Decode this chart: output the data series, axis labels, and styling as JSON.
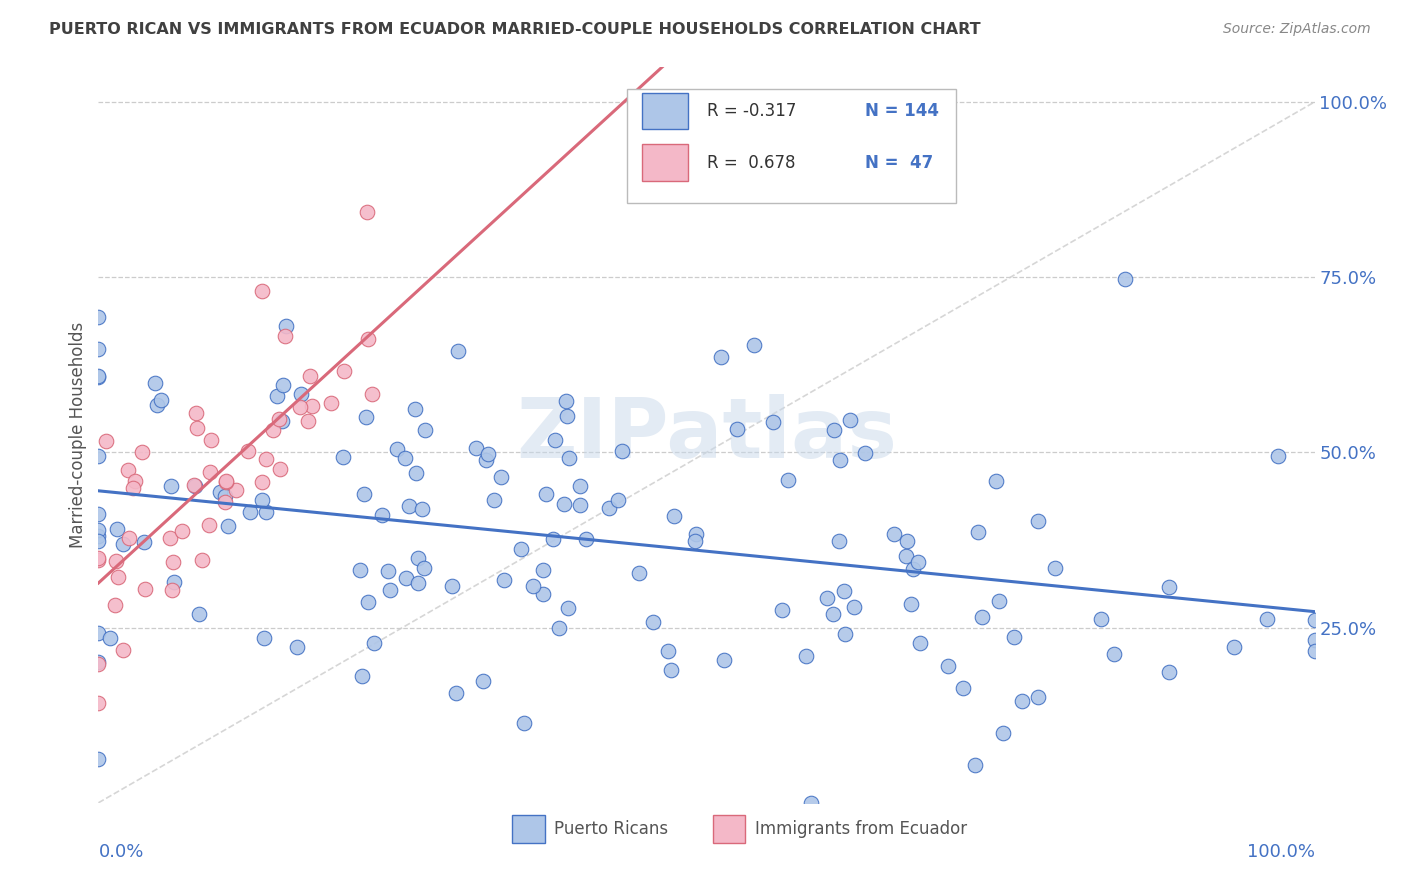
{
  "title": "PUERTO RICAN VS IMMIGRANTS FROM ECUADOR MARRIED-COUPLE HOUSEHOLDS CORRELATION CHART",
  "source": "Source: ZipAtlas.com",
  "ylabel": "Married-couple Households",
  "legend_blue_r": "-0.317",
  "legend_blue_n": "144",
  "legend_pink_r": "0.678",
  "legend_pink_n": "47",
  "blue_fill": "#aec6e8",
  "blue_edge": "#4472c4",
  "pink_fill": "#f4b8c8",
  "pink_edge": "#d9697a",
  "blue_line": "#4472c4",
  "pink_line": "#d9697a",
  "axis_color": "#4472c4",
  "title_color": "#404040",
  "source_color": "#888888",
  "grid_color": "#cccccc",
  "diag_color": "#cccccc",
  "watermark_text": "ZIPatlas",
  "watermark_color": "#c8d8ea",
  "blue_r": -0.317,
  "pink_r": 0.678,
  "blue_n": 144,
  "pink_n": 47
}
